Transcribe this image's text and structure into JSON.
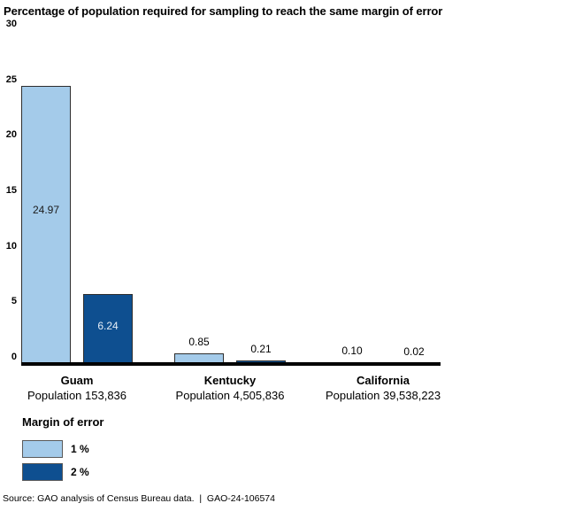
{
  "chart_data": {
    "type": "bar",
    "title": "Percentage of population required for sampling to reach the same margin of error",
    "categories": [
      "Guam",
      "Kentucky",
      "California"
    ],
    "category_sublabels": [
      "Population 153,836",
      "Population 4,505,836",
      "Population 39,538,223"
    ],
    "series": [
      {
        "name": "1 %",
        "color": "#a4cbea",
        "values": [
          24.97,
          0.85,
          0.1
        ]
      },
      {
        "name": "2 %",
        "color": "#0e4f90",
        "values": [
          6.24,
          0.21,
          0.02
        ]
      }
    ],
    "ylim": [
      0,
      30
    ],
    "yticks": [
      0,
      5,
      10,
      15,
      20,
      25,
      30
    ],
    "grid": false,
    "legend_title": "Margin of error",
    "legend_position": "bottom-left",
    "xlabel": "",
    "ylabel": ""
  },
  "colors": {
    "bar_border": "#2e2e2e",
    "axis_line": "#000000",
    "label_on_dark": "#e6eef7",
    "label_on_light": "#1a1a1a"
  },
  "source_line": "Source: GAO analysis of Census Bureau data.  |  GAO-24-106574"
}
